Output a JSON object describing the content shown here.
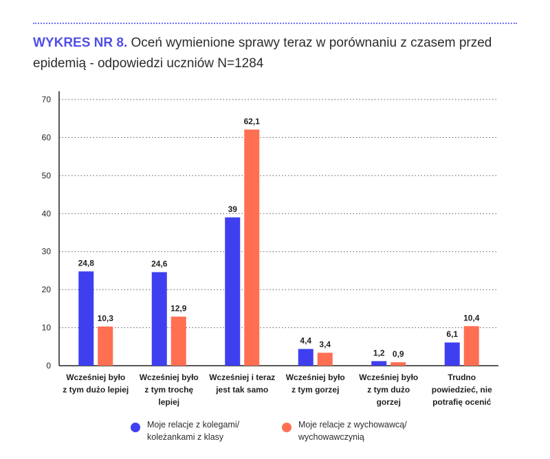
{
  "header": {
    "title_lead": "WYKRES NR 8.",
    "title_rest": " Oceń wymienione sprawy teraz w porównaniu z czasem przed epidemią - odpowiedzi uczniów N=1284"
  },
  "colors": {
    "series1": "#3f3ff0",
    "series2": "#ff6f52"
  },
  "chart_data": {
    "type": "bar",
    "categories": [
      "Wcześniej było\nz tym dużo lepiej",
      "Wcześniej było\nz tym trochę\nlepiej",
      "Wcześniej i teraz\njest tak samo",
      "Wcześniej było\nz tym gorzej",
      "Wcześniej było\nz tym dużo\ngorzej",
      "Trudno\npowiedzieć, nie\npotrafię ocenić"
    ],
    "series": [
      {
        "name": "Moje relacje z kolegami/\nkoleżankami z klasy",
        "values": [
          24.8,
          24.6,
          39,
          4.4,
          1.2,
          6.1
        ],
        "labels": [
          "24,8",
          "24,6",
          "39",
          "4,4",
          "1,2",
          "6,1"
        ]
      },
      {
        "name": "Moje relacje z wychowawcą/\nwychowawczynią",
        "values": [
          10.3,
          12.9,
          62.1,
          3.4,
          0.9,
          10.4
        ],
        "labels": [
          "10,3",
          "12,9",
          "62,1",
          "3,4",
          "0,9",
          "10,4"
        ]
      }
    ],
    "ylim": [
      0,
      70
    ],
    "yticks": [
      0,
      10,
      20,
      30,
      40,
      50,
      60,
      70
    ],
    "grid": true,
    "legend_position": "bottom"
  }
}
